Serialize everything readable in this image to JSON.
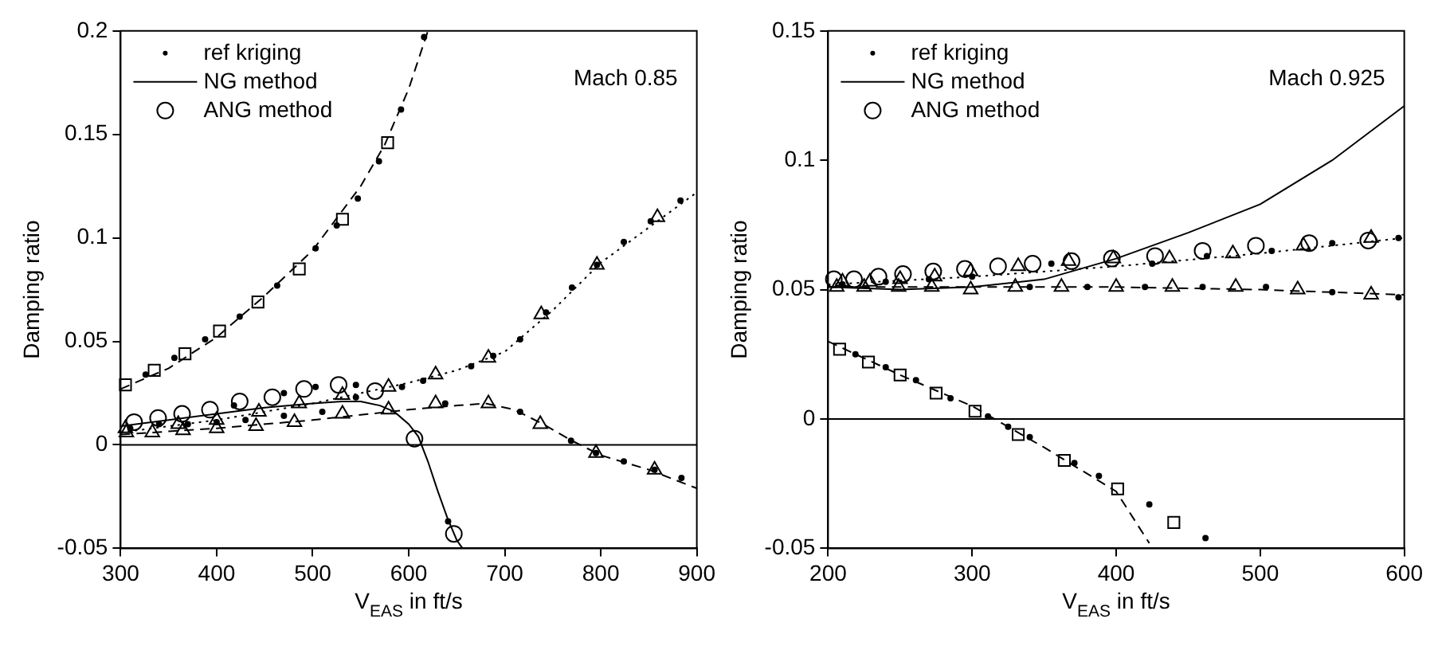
{
  "chart_data": [
    {
      "type": "line",
      "xlabel": "V$_{EAS}$ in ft/s",
      "ylabel": "Damping ratio",
      "annotations": [
        "Mach 0.85"
      ],
      "xlim": [
        300,
        900
      ],
      "ylim": [
        -0.05,
        0.2
      ],
      "xticks": [
        300,
        400,
        500,
        600,
        700,
        800,
        900
      ],
      "yticks": [
        -0.05,
        0,
        0.05,
        0.1,
        0.15,
        0.2
      ],
      "grid": false,
      "legend": "top left",
      "ref_lines": [
        {
          "axis": "y",
          "value": 0,
          "color": "#000000"
        }
      ],
      "series": [
        {
          "name": "ref kriging",
          "type": "scatter",
          "marker": "circle",
          "color": "#000000",
          "x": [
            326,
            356,
            388,
            424,
            463,
            503,
            525,
            547,
            569,
            592,
            616,
            593,
            615,
            665,
            688,
            716,
            743,
            770,
            796,
            824,
            852,
            883,
            638,
            716,
            769,
            795,
            824,
            856,
            884,
            310,
            340,
            370,
            400,
            418,
            470,
            503,
            545,
            641,
            430,
            470,
            510,
            545
          ],
          "values": [
            0.034,
            0.042,
            0.051,
            0.062,
            0.077,
            0.095,
            0.106,
            0.119,
            0.137,
            0.162,
            0.197,
            0.028,
            0.031,
            0.038,
            0.043,
            0.051,
            0.064,
            0.076,
            0.087,
            0.098,
            0.108,
            0.118,
            0.02,
            0.016,
            0.002,
            -0.004,
            -0.008,
            -0.012,
            -0.016,
            0.008,
            0.01,
            0.01,
            0.011,
            0.019,
            0.025,
            0.028,
            0.029,
            -0.037,
            0.012,
            0.014,
            0.016,
            0.023
          ]
        },
        {
          "name": "NG method",
          "type": "line",
          "marker": "none",
          "line_style": "solid",
          "color": "#000000",
          "x": [
            300,
            350,
            400,
            450,
            500,
            530,
            550,
            570,
            585,
            600,
            610,
            620,
            630,
            640,
            650,
            656
          ],
          "values": [
            0.009,
            0.012,
            0.015,
            0.018,
            0.02,
            0.021,
            0.021,
            0.019,
            0.016,
            0.01,
            0.004,
            -0.008,
            -0.022,
            -0.035,
            -0.046,
            -0.05
          ]
        },
        {
          "name": "ANG method",
          "type": "scatter",
          "marker": "circle",
          "color": "#000000",
          "x": [
            314,
            339,
            364,
            393,
            424,
            458,
            491,
            527,
            565,
            606,
            647
          ],
          "values": [
            0.011,
            0.013,
            0.015,
            0.017,
            0.021,
            0.023,
            0.027,
            0.029,
            0.026,
            0.003,
            -0.043
          ]
        },
        {
          "type": "line",
          "marker": "none",
          "line_style": "dashed",
          "color": "#000000",
          "x": [
            300,
            350,
            400,
            450,
            500,
            550,
            575,
            600,
            620
          ],
          "values": [
            0.027,
            0.037,
            0.052,
            0.072,
            0.094,
            0.125,
            0.145,
            0.172,
            0.2
          ]
        },
        {
          "type": "scatter",
          "marker": "square",
          "color": "#000000",
          "x": [
            305,
            335,
            367,
            403,
            443,
            486,
            531,
            578
          ],
          "values": [
            0.029,
            0.036,
            0.044,
            0.055,
            0.069,
            0.085,
            0.109,
            0.146
          ]
        },
        {
          "type": "line",
          "marker": "none",
          "line_style": "dotted",
          "color": "#000000",
          "x": [
            300,
            400,
            500,
            600,
            650,
            700,
            750,
            800,
            850,
            900
          ],
          "values": [
            0.006,
            0.012,
            0.02,
            0.03,
            0.036,
            0.045,
            0.065,
            0.088,
            0.105,
            0.122
          ]
        },
        {
          "type": "scatter",
          "marker": "triangle",
          "color": "#000000",
          "x": [
            305,
            360,
            400,
            444,
            486,
            531,
            579,
            628,
            683,
            738,
            796,
            859
          ],
          "values": [
            0.008,
            0.01,
            0.012,
            0.016,
            0.02,
            0.024,
            0.028,
            0.034,
            0.042,
            0.063,
            0.087,
            0.11
          ]
        },
        {
          "type": "line",
          "marker": "none",
          "line_style": "dashed",
          "color": "#000000",
          "x": [
            300,
            400,
            500,
            600,
            650,
            680,
            710,
            740,
            770,
            800,
            850,
            900
          ],
          "values": [
            0.005,
            0.008,
            0.012,
            0.017,
            0.019,
            0.02,
            0.017,
            0.01,
            0.002,
            -0.005,
            -0.012,
            -0.021
          ]
        },
        {
          "type": "scatter",
          "marker": "triangle",
          "color": "#000000",
          "x": [
            306,
            333,
            365,
            400,
            441,
            481,
            531,
            579,
            628,
            683,
            737,
            795,
            856
          ],
          "values": [
            0.006,
            0.006,
            0.007,
            0.008,
            0.009,
            0.011,
            0.015,
            0.017,
            0.02,
            0.02,
            0.01,
            -0.004,
            -0.012
          ]
        }
      ]
    },
    {
      "type": "line",
      "xlabel": "V$_{EAS}$ in ft/s",
      "ylabel": "Damping ratio",
      "annotations": [
        "Mach 0.925"
      ],
      "xlim": [
        200,
        600
      ],
      "ylim": [
        -0.05,
        0.15
      ],
      "xticks": [
        200,
        300,
        400,
        500,
        600
      ],
      "yticks": [
        -0.05,
        0,
        0.05,
        0.1,
        0.15
      ],
      "grid": false,
      "legend": "top left",
      "ref_lines": [
        {
          "axis": "y",
          "value": 0,
          "color": "#000000"
        }
      ],
      "series": [
        {
          "name": "ref kriging",
          "type": "scatter",
          "marker": "circle",
          "color": "#000000",
          "x": [
            219,
            240,
            261,
            285,
            311,
            325,
            340,
            371,
            388,
            423,
            462,
            550,
            596,
            504,
            460,
            420,
            380,
            340,
            355,
            425,
            463,
            508,
            550,
            596,
            210,
            240,
            270,
            300
          ],
          "values": [
            0.025,
            0.02,
            0.015,
            0.008,
            0.001,
            -0.003,
            -0.007,
            -0.017,
            -0.022,
            -0.033,
            -0.046,
            0.049,
            0.047,
            0.051,
            0.051,
            0.051,
            0.051,
            0.051,
            0.06,
            0.06,
            0.063,
            0.065,
            0.068,
            0.07,
            0.052,
            0.053,
            0.054,
            0.055
          ]
        },
        {
          "name": "NG method",
          "type": "line",
          "marker": "none",
          "line_style": "solid",
          "color": "#000000",
          "x": [
            200,
            250,
            300,
            350,
            400,
            450,
            500,
            550,
            600
          ],
          "values": [
            0.051,
            0.05,
            0.051,
            0.054,
            0.062,
            0.072,
            0.083,
            0.1,
            0.121
          ]
        },
        {
          "name": "ANG method",
          "type": "scatter",
          "marker": "circle",
          "color": "#000000",
          "x": [
            204,
            218,
            235,
            252,
            273,
            295,
            318,
            342,
            369,
            397,
            427,
            460,
            497,
            534,
            575
          ],
          "values": [
            0.054,
            0.054,
            0.055,
            0.056,
            0.057,
            0.058,
            0.059,
            0.06,
            0.061,
            0.062,
            0.063,
            0.065,
            0.067,
            0.068,
            0.069
          ]
        },
        {
          "type": "line",
          "marker": "none",
          "line_style": "dashed",
          "color": "#000000",
          "x": [
            200,
            250,
            300,
            350,
            400,
            423
          ],
          "values": [
            0.03,
            0.017,
            0.005,
            -0.011,
            -0.028,
            -0.048
          ]
        },
        {
          "type": "scatter",
          "marker": "square",
          "color": "#000000",
          "x": [
            208,
            228,
            250,
            275,
            302,
            332,
            364,
            401,
            440
          ],
          "values": [
            0.027,
            0.022,
            0.017,
            0.01,
            0.003,
            -0.006,
            -0.016,
            -0.027,
            -0.04
          ]
        },
        {
          "type": "line",
          "marker": "none",
          "line_style": "dotted",
          "color": "#000000",
          "x": [
            200,
            300,
            400,
            500,
            600
          ],
          "values": [
            0.052,
            0.055,
            0.059,
            0.064,
            0.07
          ]
        },
        {
          "type": "scatter",
          "marker": "triangle",
          "color": "#000000",
          "x": [
            210,
            229,
            250,
            274,
            299,
            332,
            367,
            398,
            437,
            481,
            530,
            577
          ],
          "values": [
            0.053,
            0.053,
            0.054,
            0.055,
            0.057,
            0.059,
            0.061,
            0.062,
            0.062,
            0.064,
            0.067,
            0.07
          ]
        },
        {
          "type": "line",
          "marker": "none",
          "line_style": "dashed",
          "color": "#000000",
          "x": [
            200,
            300,
            400,
            500,
            550,
            600
          ],
          "values": [
            0.051,
            0.051,
            0.051,
            0.05,
            0.049,
            0.048
          ]
        },
        {
          "type": "scatter",
          "marker": "triangle",
          "color": "#000000",
          "x": [
            206,
            225,
            249,
            272,
            299,
            330,
            362,
            400,
            439,
            483,
            526,
            577
          ],
          "values": [
            0.051,
            0.051,
            0.051,
            0.051,
            0.05,
            0.051,
            0.051,
            0.051,
            0.051,
            0.051,
            0.05,
            0.048
          ]
        }
      ]
    }
  ]
}
